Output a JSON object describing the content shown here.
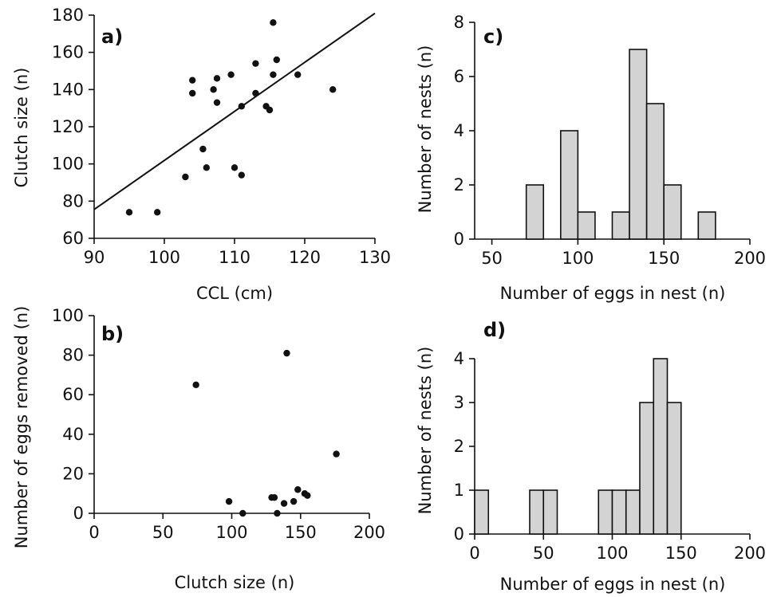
{
  "chart_data": [
    {
      "id": "a",
      "type": "scatter",
      "panel_label": "a)",
      "xlabel": "CCL (cm)",
      "ylabel": "Clutch size (n)",
      "xlim": [
        90,
        130
      ],
      "ylim": [
        60,
        180
      ],
      "xticks": [
        90,
        100,
        110,
        120,
        130
      ],
      "yticks": [
        60,
        80,
        100,
        120,
        140,
        160,
        180
      ],
      "points": [
        [
          95,
          74
        ],
        [
          99,
          74
        ],
        [
          103,
          93
        ],
        [
          104,
          145
        ],
        [
          104,
          138
        ],
        [
          105.5,
          108
        ],
        [
          106,
          98
        ],
        [
          107,
          140
        ],
        [
          107.5,
          146
        ],
        [
          107.5,
          133
        ],
        [
          109.5,
          148
        ],
        [
          110,
          98
        ],
        [
          111,
          131
        ],
        [
          111,
          94
        ],
        [
          113,
          154
        ],
        [
          113,
          138
        ],
        [
          114.5,
          131
        ],
        [
          115,
          129
        ],
        [
          115.5,
          176
        ],
        [
          115.5,
          148
        ],
        [
          116,
          156
        ],
        [
          119,
          148
        ],
        [
          124,
          140
        ]
      ],
      "trendline": [
        [
          90,
          75.5
        ],
        [
          130,
          181
        ]
      ],
      "grid": false
    },
    {
      "id": "b",
      "type": "scatter",
      "panel_label": "b)",
      "xlabel": "Clutch size (n)",
      "ylabel": "Number of eggs removed (n)",
      "xlim": [
        0,
        200
      ],
      "ylim": [
        0,
        100
      ],
      "xticks": [
        0,
        50,
        100,
        150,
        200
      ],
      "yticks": [
        0,
        20,
        40,
        60,
        80,
        100
      ],
      "points": [
        [
          74,
          65
        ],
        [
          98,
          6
        ],
        [
          108,
          0
        ],
        [
          129,
          8
        ],
        [
          131,
          8
        ],
        [
          133,
          0
        ],
        [
          138,
          5
        ],
        [
          140,
          81
        ],
        [
          145,
          6
        ],
        [
          148,
          12
        ],
        [
          153,
          10
        ],
        [
          155,
          9
        ],
        [
          176,
          30
        ]
      ],
      "grid": false
    },
    {
      "id": "c",
      "type": "bar",
      "panel_label": "c)",
      "xlabel": "Number of eggs in nest (n)",
      "ylabel": "Number of nests (n)",
      "xlim": [
        40,
        200
      ],
      "ylim": [
        0,
        8
      ],
      "xticks": [
        50,
        100,
        150,
        200
      ],
      "yticks": [
        0,
        2,
        4,
        6,
        8
      ],
      "bin_width": 10,
      "bins": [
        {
          "start": 70,
          "value": 2
        },
        {
          "start": 90,
          "value": 4
        },
        {
          "start": 100,
          "value": 1
        },
        {
          "start": 120,
          "value": 1
        },
        {
          "start": 130,
          "value": 7
        },
        {
          "start": 140,
          "value": 5
        },
        {
          "start": 150,
          "value": 2
        },
        {
          "start": 170,
          "value": 1
        }
      ],
      "grid": false
    },
    {
      "id": "d",
      "type": "bar",
      "panel_label": "d)",
      "xlabel": "Number of eggs in nest (n)",
      "ylabel": "Number of nests (n)",
      "xlim": [
        0,
        200
      ],
      "ylim": [
        0,
        4.8
      ],
      "xticks": [
        0,
        50,
        100,
        150,
        200
      ],
      "yticks": [
        0,
        1,
        2,
        3,
        4
      ],
      "bin_width": 10,
      "bins": [
        {
          "start": 0,
          "value": 1
        },
        {
          "start": 40,
          "value": 1
        },
        {
          "start": 50,
          "value": 1
        },
        {
          "start": 90,
          "value": 1
        },
        {
          "start": 100,
          "value": 1
        },
        {
          "start": 110,
          "value": 1
        },
        {
          "start": 120,
          "value": 3
        },
        {
          "start": 130,
          "value": 4
        },
        {
          "start": 140,
          "value": 3
        }
      ],
      "grid": false
    }
  ],
  "colors": {
    "bar_fill": "#d3d3d3",
    "stroke": "#111111",
    "background": "#ffffff"
  }
}
